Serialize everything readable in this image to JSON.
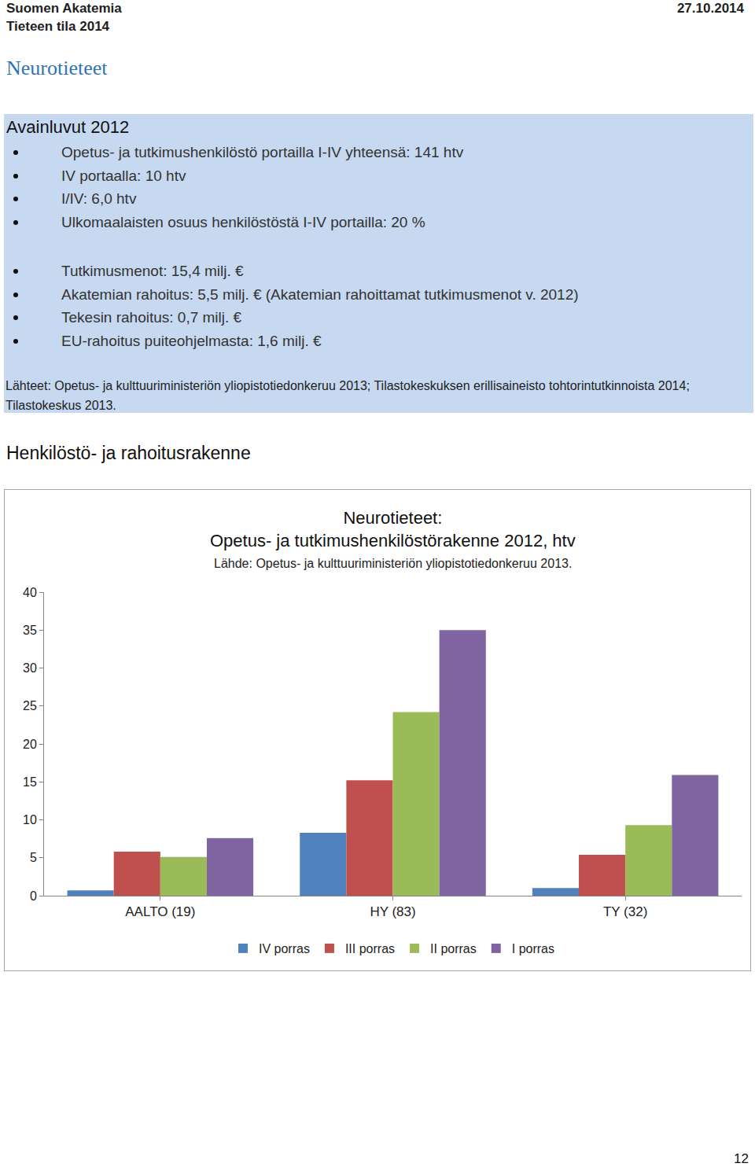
{
  "header": {
    "organization": "Suomen Akatemia",
    "report": "Tieteen tila 2014",
    "date": "27.10.2014"
  },
  "title": "Neurotieteet",
  "key_figures": {
    "heading": "Avainluvut 2012",
    "groups": [
      [
        "Opetus- ja tutkimushenkilöstö portailla I-IV yhteensä: 141 htv",
        "IV portaalla: 10 htv",
        "I/IV: 6,0 htv",
        "Ulkomaalaisten osuus henkilöstöstä I-IV portailla: 20 %"
      ],
      [
        "Tutkimusmenot: 15,4 milj. €",
        "Akatemian rahoitus: 5,5 milj. € (Akatemian rahoittamat tutkimusmenot v. 2012)",
        "Tekesin rahoitus: 0,7 milj. €",
        "EU-rahoitus puiteohjelmasta: 1,6 milj. €"
      ]
    ],
    "sources": "Lähteet: Opetus- ja kulttuuriministeriön yliopistotiedonkeruu 2013; Tilastokeskuksen erillisaineisto tohtorintutkinnoista 2014; Tilastokeskus 2013."
  },
  "section_title": "Henkilöstö- ja rahoitusrakenne",
  "chart_data": {
    "type": "bar",
    "title": "Neurotieteet:\nOpetus- ja tutkimushenkilöstörakenne 2012, htv",
    "subtitle": "Lähde: Opetus- ja kulttuuriministeriön yliopistotiedonkeruu 2013.",
    "categories": [
      "AALTO (19)",
      "HY (83)",
      "TY (32)"
    ],
    "series": [
      {
        "name": "IV porras",
        "color": "#4f81bd",
        "values": [
          0.7,
          8.3,
          1.0
        ]
      },
      {
        "name": "III porras",
        "color": "#c0504d",
        "values": [
          5.8,
          15.2,
          5.4
        ]
      },
      {
        "name": "II porras",
        "color": "#9bbb59",
        "values": [
          5.1,
          24.2,
          9.3
        ]
      },
      {
        "name": "I porras",
        "color": "#8064a2",
        "values": [
          7.6,
          35.0,
          15.9
        ]
      }
    ],
    "ylim": [
      0,
      40
    ],
    "yticks": [
      0,
      5,
      10,
      15,
      20,
      25,
      30,
      35,
      40
    ],
    "grid": false,
    "legend": "bottom"
  },
  "page_number": "12"
}
